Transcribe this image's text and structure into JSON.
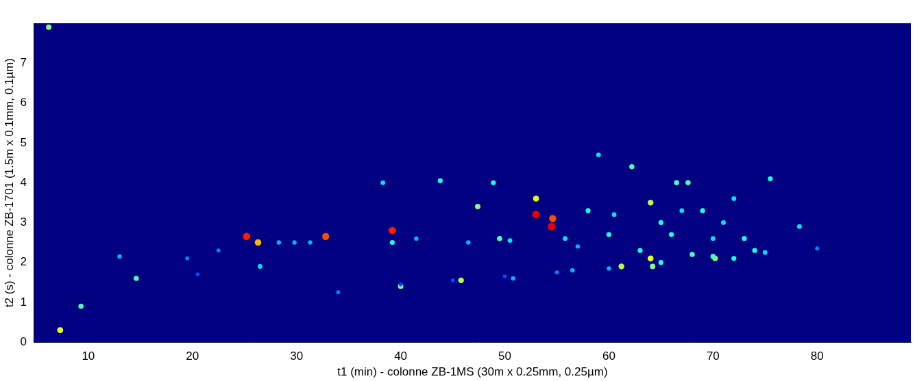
{
  "chart_data": {
    "type": "heatmap",
    "x_label": "t1 (min) - colonne ZB-1MS (30m x 0.25mm, 0.25µm)",
    "y_label": "t2 (s) - colonne ZB-1701 (1.5m x 0.1mm, 0.1µm)",
    "xlim": [
      4.8,
      89
    ],
    "xticks": [
      10,
      20,
      30,
      40,
      50,
      60,
      70,
      80
    ],
    "ylim": [
      0,
      8
    ],
    "yticks": [
      0,
      1,
      2,
      3,
      4,
      5,
      6,
      7
    ],
    "grid": false,
    "colorbar_lim": [
      0,
      1
    ],
    "cells": {
      "t1": [
        6.2,
        7.3,
        9.3,
        13,
        14.6,
        19.5,
        20.5,
        22.5,
        25.2,
        26.3,
        26.5,
        28.3,
        29.8,
        31.3,
        32.8,
        34,
        38.3,
        39.2,
        39.2,
        40,
        41.5,
        43.8,
        45.8,
        47.4,
        48.9,
        49.5,
        50.5,
        53,
        53,
        54.5,
        54.6,
        55.8,
        57,
        58,
        59,
        60,
        61.2,
        62.2,
        63,
        64,
        64,
        64.2,
        65,
        66.5,
        67.6,
        68,
        69,
        70.2,
        71,
        72,
        73,
        74,
        75.5,
        78.3,
        46.5,
        50.8,
        56.5,
        60.5,
        66,
        67,
        70,
        72,
        40,
        45,
        50,
        55,
        60,
        65,
        70,
        75,
        80
      ],
      "t2": [
        7.9,
        0.3,
        0.9,
        2.15,
        1.6,
        2.1,
        1.7,
        2.3,
        2.65,
        2.5,
        1.9,
        2.5,
        2.5,
        2.5,
        2.65,
        1.25,
        4.0,
        2.8,
        2.5,
        1.4,
        2.6,
        4.05,
        1.55,
        3.4,
        4.0,
        2.6,
        2.55,
        3.2,
        3.6,
        2.9,
        3.1,
        2.6,
        2.4,
        3.3,
        4.7,
        2.7,
        1.9,
        4.4,
        2.3,
        3.5,
        2.1,
        1.9,
        3.0,
        4.0,
        4.0,
        2.2,
        3.3,
        2.1,
        3.0,
        3.6,
        2.6,
        2.3,
        4.1,
        2.9,
        2.5,
        1.6,
        1.8,
        3.2,
        2.7,
        3.3,
        2.6,
        2.1,
        1.45,
        1.55,
        1.65,
        1.75,
        1.85,
        2.0,
        2.15,
        2.25,
        2.35
      ],
      "intensity": [
        0.5,
        0.6,
        0.45,
        0.3,
        0.45,
        0.25,
        0.2,
        0.25,
        0.85,
        0.7,
        0.35,
        0.3,
        0.3,
        0.3,
        0.8,
        0.25,
        0.35,
        0.85,
        0.4,
        0.5,
        0.3,
        0.4,
        0.55,
        0.5,
        0.4,
        0.45,
        0.35,
        0.9,
        0.6,
        0.9,
        0.8,
        0.35,
        0.3,
        0.4,
        0.35,
        0.4,
        0.55,
        0.45,
        0.4,
        0.55,
        0.6,
        0.5,
        0.4,
        0.45,
        0.45,
        0.45,
        0.4,
        0.5,
        0.35,
        0.35,
        0.4,
        0.4,
        0.4,
        0.35,
        0.3,
        0.3,
        0.3,
        0.35,
        0.4,
        0.35,
        0.35,
        0.4,
        0.2,
        0.2,
        0.2,
        0.25,
        0.3,
        0.4,
        0.45,
        0.35,
        0.25
      ]
    }
  }
}
